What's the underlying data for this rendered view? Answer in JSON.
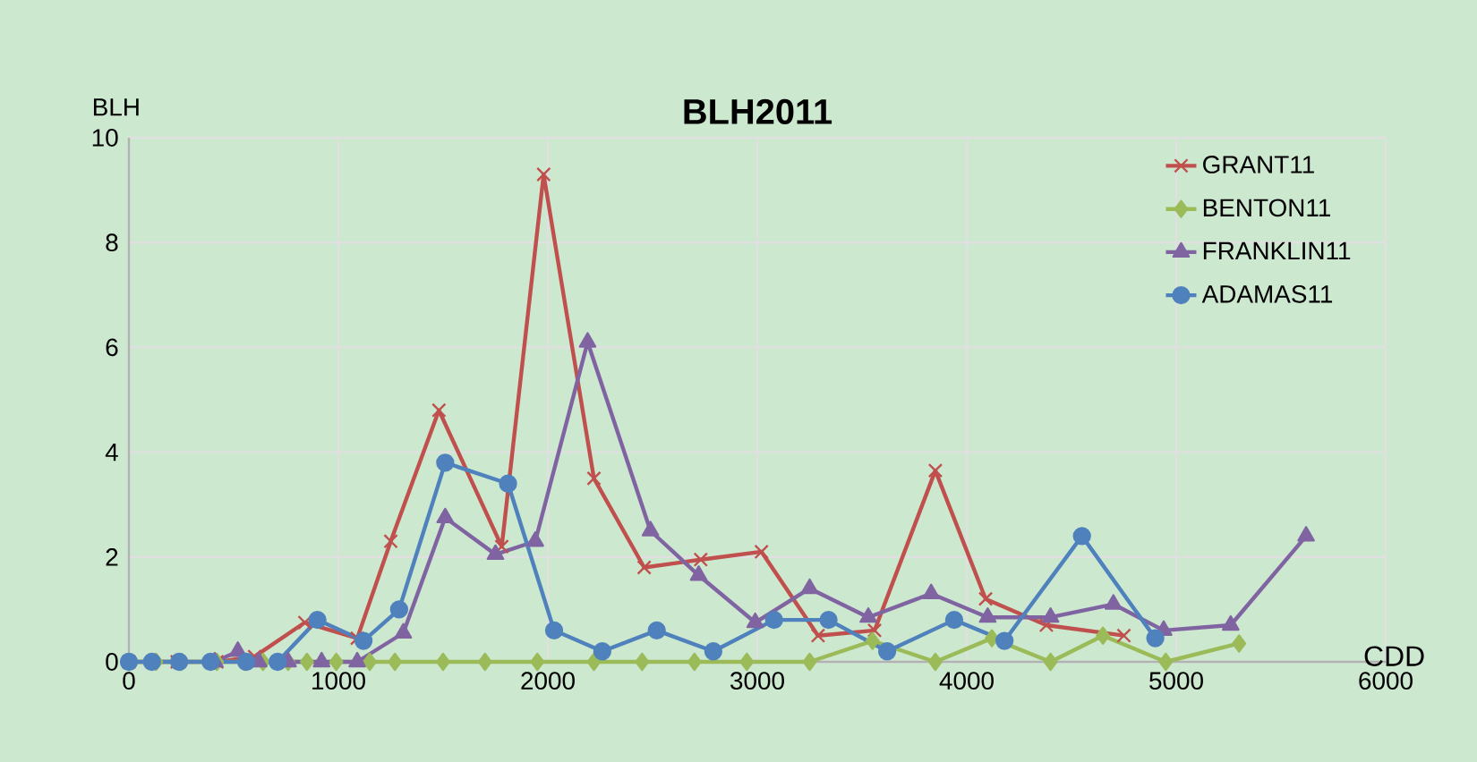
{
  "chart_data": {
    "type": "line",
    "title": "BLH2011",
    "xlabel": "CDD",
    "ylabel": "BLH",
    "xlim": [
      0,
      6000
    ],
    "xticks": [
      0,
      1000,
      2000,
      3000,
      4000,
      5000,
      6000
    ],
    "ylim": [
      0,
      10
    ],
    "yticks": [
      0,
      2,
      4,
      6,
      8,
      10
    ],
    "grid": true,
    "legend": "top right",
    "line_style": "solid",
    "series": [
      {
        "name": "GRANT11",
        "color": "#c0504d",
        "marker": "cross",
        "x": [
          0,
          230,
          420,
          600,
          840,
          1090,
          1250,
          1480,
          1780,
          1980,
          2220,
          2460,
          2730,
          3020,
          3290,
          3560,
          3850,
          4090,
          4380,
          4750
        ],
        "values": [
          0,
          0,
          0,
          0.1,
          0.75,
          0.45,
          2.3,
          4.8,
          2.2,
          9.3,
          3.5,
          1.8,
          1.95,
          2.1,
          0.5,
          0.6,
          3.65,
          1.2,
          0.7,
          0.5
        ]
      },
      {
        "name": "BENTON11",
        "color": "#9bbb59",
        "marker": "diamond",
        "x": [
          0,
          130,
          250,
          420,
          550,
          640,
          760,
          850,
          990,
          1150,
          1270,
          1500,
          1700,
          1950,
          2220,
          2450,
          2700,
          2950,
          3250,
          3550,
          3850,
          4120,
          4400,
          4650,
          4950,
          5300
        ],
        "values": [
          0,
          0,
          0,
          0,
          0,
          0,
          0,
          0,
          0,
          0,
          0,
          0,
          0,
          0,
          0,
          0,
          0,
          0,
          0,
          0.4,
          0,
          0.45,
          0,
          0.5,
          0,
          0.35
        ]
      },
      {
        "name": "FRANKLIN11",
        "color": "#8064a2",
        "marker": "triangle",
        "x": [
          410,
          520,
          620,
          760,
          920,
          1090,
          1310,
          1510,
          1750,
          1940,
          2190,
          2490,
          2720,
          2990,
          3250,
          3530,
          3830,
          4100,
          4400,
          4700,
          4940,
          5260,
          5620
        ],
        "values": [
          0,
          0.2,
          0,
          0,
          0,
          0,
          0.55,
          2.75,
          2.05,
          2.3,
          6.1,
          2.5,
          1.65,
          0.75,
          1.4,
          0.85,
          1.3,
          0.85,
          0.85,
          1.1,
          0.6,
          0.7,
          2.4
        ]
      },
      {
        "name": "ADAMAS11",
        "color": "#4f81bd",
        "marker": "circle",
        "x": [
          0,
          110,
          240,
          390,
          560,
          710,
          900,
          1120,
          1290,
          1510,
          1810,
          2030,
          2260,
          2520,
          2790,
          3080,
          3340,
          3620,
          3940,
          4180,
          4550,
          4900
        ],
        "values": [
          0,
          0,
          0,
          0,
          0,
          0,
          0.8,
          0.4,
          1.0,
          3.8,
          3.4,
          0.6,
          0.2,
          0.6,
          0.2,
          0.8,
          0.8,
          0.2,
          0.8,
          0.4,
          2.4,
          0.45
        ]
      }
    ]
  }
}
